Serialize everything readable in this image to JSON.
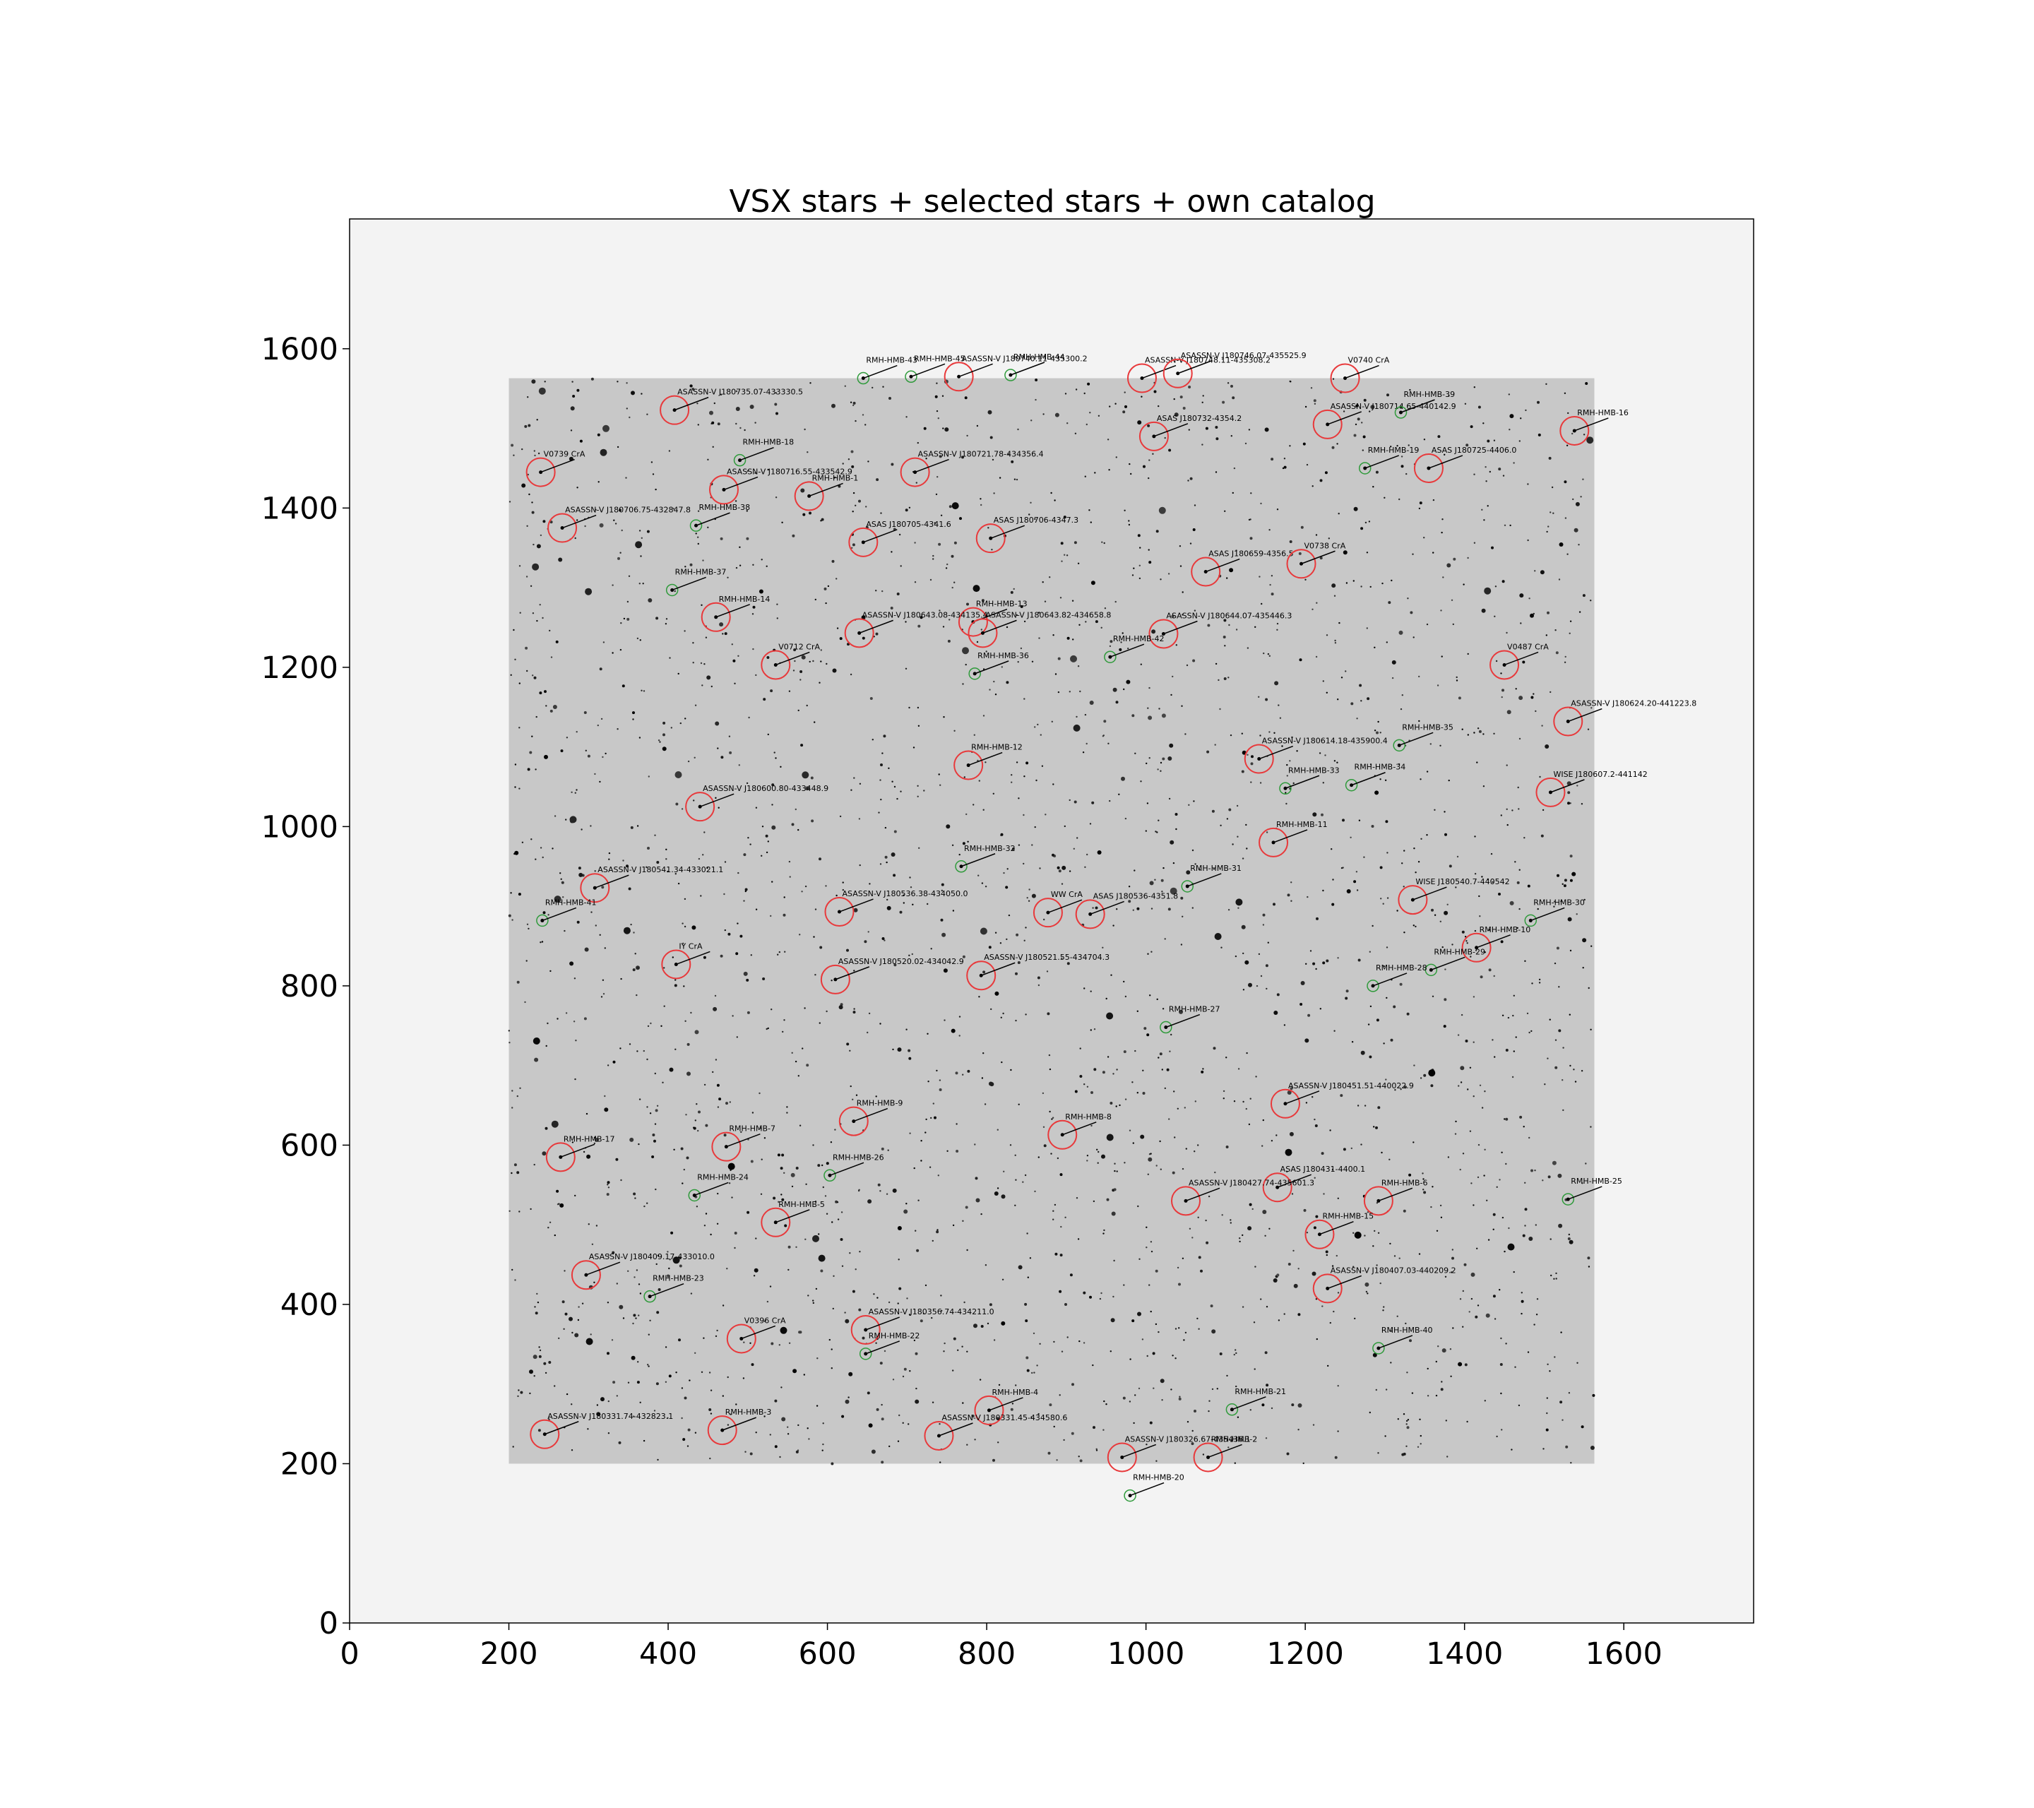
{
  "chart_data": {
    "type": "scatter",
    "title": "VSX stars + selected stars + own catalog",
    "xlabel": "",
    "ylabel": "",
    "xlim": [
      0,
      1763
    ],
    "ylim": [
      0,
      1763
    ],
    "x_ticks": [
      0,
      200,
      400,
      600,
      800,
      1000,
      1200,
      1400,
      1600
    ],
    "y_ticks": [
      0,
      200,
      400,
      600,
      800,
      1000,
      1200,
      1400,
      1600
    ],
    "image_extent": {
      "x": [
        200,
        1563
      ],
      "y": [
        200,
        1563
      ]
    },
    "grid": false,
    "colors": {
      "vsx": "#e8393b",
      "own": "#2e9a3a",
      "background": "#f3f3f3",
      "image": "#c8c8c8"
    },
    "series": [
      {
        "name": "",
        "marker": "large-circle",
        "color": "#e8393b",
        "points": [
          {
            "label": "ASASSN-V J180740.11-435300.2",
            "x": 765,
            "y": 1565
          },
          {
            "label": "ASASSN-V J180748.11-435308.2",
            "x": 995,
            "y": 1563
          },
          {
            "label": "ASASSN-V J180746.07-435525.9",
            "x": 1040,
            "y": 1569
          },
          {
            "label": "V0740 CrA",
            "x": 1250,
            "y": 1563
          },
          {
            "label": "ASASSN-V J180735.07-433330.5",
            "x": 408,
            "y": 1523
          },
          {
            "label": "ASAS J180732-4354.2",
            "x": 1010,
            "y": 1490
          },
          {
            "label": "ASASSN-V J180714.65-440142.9",
            "x": 1228,
            "y": 1505
          },
          {
            "label": "RMH-HMB-16",
            "x": 1538,
            "y": 1497
          },
          {
            "label": "V0739 CrA",
            "x": 240,
            "y": 1445
          },
          {
            "label": "ASASSN-V J180721.78-434356.4",
            "x": 710,
            "y": 1445
          },
          {
            "label": "ASAS J180725-4406.0",
            "x": 1355,
            "y": 1450
          },
          {
            "label": "ASASSN-V J180716.55-433542.9",
            "x": 470,
            "y": 1423
          },
          {
            "label": "RMH-HMB-1",
            "x": 577,
            "y": 1415
          },
          {
            "label": "ASASSN-V J180706.75-432847.8",
            "x": 267,
            "y": 1375
          },
          {
            "label": "ASAS J180705-4341.6",
            "x": 645,
            "y": 1357
          },
          {
            "label": "ASAS J180706-4347.3",
            "x": 805,
            "y": 1362
          },
          {
            "label": "ASAS J180659-4356.5",
            "x": 1075,
            "y": 1320
          },
          {
            "label": "V0738 CrA",
            "x": 1195,
            "y": 1330
          },
          {
            "label": "RMH-HMB-14",
            "x": 460,
            "y": 1263
          },
          {
            "label": "RMH-HMB-13",
            "x": 783,
            "y": 1257
          },
          {
            "label": "ASASSN-V J180643.08-434135.4",
            "x": 640,
            "y": 1243
          },
          {
            "label": "ASASSN-V J180643.82-434658.8",
            "x": 795,
            "y": 1243
          },
          {
            "label": "ASASSN-V J180644.07-435446.3",
            "x": 1022,
            "y": 1242
          },
          {
            "label": "V0712 CrA",
            "x": 535,
            "y": 1203
          },
          {
            "label": "V0487 CrA",
            "x": 1450,
            "y": 1203
          },
          {
            "label": "ASASSN-V J180624.20-441223.8",
            "x": 1530,
            "y": 1132
          },
          {
            "label": "RMH-HMB-12",
            "x": 777,
            "y": 1077
          },
          {
            "label": "ASASSN-V J180614.18-435900.4",
            "x": 1142,
            "y": 1085
          },
          {
            "label": "WISE J180607.2-441142",
            "x": 1508,
            "y": 1043
          },
          {
            "label": "ASASSN-V J180600.80-433448.9",
            "x": 440,
            "y": 1025
          },
          {
            "label": "RMH-HMB-11",
            "x": 1160,
            "y": 980
          },
          {
            "label": "ASASSN-V J180541.34-433021.1",
            "x": 308,
            "y": 923
          },
          {
            "label": "ASASSN-V J180536.38-434050.0",
            "x": 615,
            "y": 893
          },
          {
            "label": "WW CrA",
            "x": 877,
            "y": 892
          },
          {
            "label": "ASAS J180536-4351.8",
            "x": 930,
            "y": 890
          },
          {
            "label": "WISE J180540.7-440542",
            "x": 1335,
            "y": 908
          },
          {
            "label": "RMH-HMB-10",
            "x": 1415,
            "y": 848
          },
          {
            "label": "IY CrA",
            "x": 410,
            "y": 827
          },
          {
            "label": "ASASSN-V J180520.02-434042.9",
            "x": 610,
            "y": 808
          },
          {
            "label": "ASASSN-V J180521.55-434704.3",
            "x": 793,
            "y": 813
          },
          {
            "label": "ASASSN-V J180451.51-440022.9",
            "x": 1175,
            "y": 652
          },
          {
            "label": "RMH-HMB-9",
            "x": 633,
            "y": 630
          },
          {
            "label": "RMH-HMB-8",
            "x": 895,
            "y": 613
          },
          {
            "label": "RMH-HMB-7",
            "x": 473,
            "y": 598
          },
          {
            "label": "RMH-HMB-17",
            "x": 265,
            "y": 585
          },
          {
            "label": "ASAS J180431-4400.1",
            "x": 1165,
            "y": 547
          },
          {
            "label": "ASASSN-V J180427.74-435601.3",
            "x": 1050,
            "y": 530
          },
          {
            "label": "RMH-HMB-6",
            "x": 1292,
            "y": 530
          },
          {
            "label": "RMH-HMB-5",
            "x": 535,
            "y": 503
          },
          {
            "label": "RMH-HMB-15",
            "x": 1218,
            "y": 488
          },
          {
            "label": "ASASSN-V J180409.17-433010.0",
            "x": 297,
            "y": 437
          },
          {
            "label": "ASASSN-V J180407.03-440209.2",
            "x": 1228,
            "y": 420
          },
          {
            "label": "ASASSN-V J180356.74-434211.0",
            "x": 648,
            "y": 368
          },
          {
            "label": "V0396 CrA",
            "x": 492,
            "y": 357
          },
          {
            "label": "RMH-HMB-4",
            "x": 803,
            "y": 267
          },
          {
            "label": "ASASSN-V J180331.74-432823.1",
            "x": 245,
            "y": 237
          },
          {
            "label": "RMH-HMB-3",
            "x": 468,
            "y": 242
          },
          {
            "label": "ASASSN-V J180331.45-434580.6",
            "x": 740,
            "y": 235
          },
          {
            "label": "ASASSN-V J180326.67-435436.1",
            "x": 970,
            "y": 208
          },
          {
            "label": "RMH-HMB-2",
            "x": 1078,
            "y": 208
          }
        ]
      },
      {
        "name": "",
        "marker": "small-circle",
        "color": "#2e9a3a",
        "points": [
          {
            "label": "RMH-HMB-43",
            "x": 645,
            "y": 1563
          },
          {
            "label": "RMH-HMB-45",
            "x": 705,
            "y": 1565
          },
          {
            "label": "RMH-HMB-44",
            "x": 830,
            "y": 1567
          },
          {
            "label": "RMH-HMB-39",
            "x": 1320,
            "y": 1520
          },
          {
            "label": "RMH-HMB-18",
            "x": 490,
            "y": 1460
          },
          {
            "label": "RMH-HMB-19",
            "x": 1275,
            "y": 1450
          },
          {
            "label": "RMH-HMB-38",
            "x": 435,
            "y": 1378
          },
          {
            "label": "RMH-HMB-37",
            "x": 405,
            "y": 1297
          },
          {
            "label": "RMH-HMB-36",
            "x": 785,
            "y": 1192
          },
          {
            "label": "RMH-HMB-42",
            "x": 955,
            "y": 1213
          },
          {
            "label": "RMH-HMB-35",
            "x": 1318,
            "y": 1102
          },
          {
            "label": "RMH-HMB-33",
            "x": 1175,
            "y": 1048
          },
          {
            "label": "RMH-HMB-34",
            "x": 1258,
            "y": 1052
          },
          {
            "label": "RMH-HMB-32",
            "x": 768,
            "y": 950
          },
          {
            "label": "RMH-HMB-31",
            "x": 1052,
            "y": 925
          },
          {
            "label": "RMH-HMB-41",
            "x": 242,
            "y": 882
          },
          {
            "label": "RMH-HMB-30",
            "x": 1483,
            "y": 882
          },
          {
            "label": "RMH-HMB-29",
            "x": 1358,
            "y": 820
          },
          {
            "label": "RMH-HMB-28",
            "x": 1285,
            "y": 800
          },
          {
            "label": "RMH-HMB-27",
            "x": 1025,
            "y": 748
          },
          {
            "label": "RMH-HMB-26",
            "x": 603,
            "y": 562
          },
          {
            "label": "RMH-HMB-24",
            "x": 433,
            "y": 537
          },
          {
            "label": "RMH-HMB-25",
            "x": 1530,
            "y": 532
          },
          {
            "label": "RMH-HMB-23",
            "x": 377,
            "y": 410
          },
          {
            "label": "RMH-HMB-40",
            "x": 1292,
            "y": 345
          },
          {
            "label": "RMH-HMB-22",
            "x": 648,
            "y": 338
          },
          {
            "label": "RMH-HMB-21",
            "x": 1108,
            "y": 268
          },
          {
            "label": "RMH-HMB-20",
            "x": 980,
            "y": 160
          }
        ]
      }
    ]
  }
}
